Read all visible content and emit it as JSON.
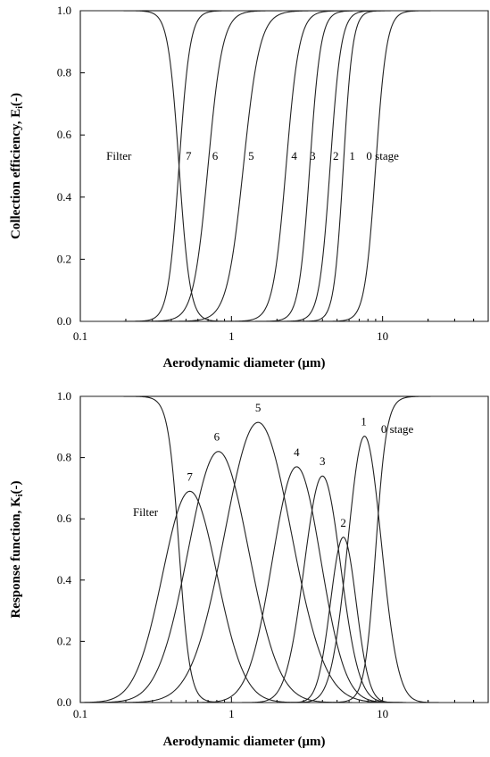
{
  "chart_data": [
    {
      "type": "line",
      "xlabel": "Aerodynamic diameter (μm)",
      "ylabel": "Collection efficiency, E",
      "ylabel_sub": "i",
      "ylabel_suffix": "(-)",
      "xscale": "log",
      "xlim": [
        0.1,
        50
      ],
      "ylim": [
        0,
        1.0
      ],
      "grid": false,
      "xticks": [
        "0.1",
        "1",
        "10"
      ],
      "yticks": [
        "0.0",
        "0.2",
        "0.4",
        "0.6",
        "0.8",
        "1.0"
      ],
      "series": [
        {
          "label": "Filter",
          "d50": 0.45,
          "slope": 12,
          "decreasing": true,
          "label_x": 0.18,
          "label_y": 0.52
        },
        {
          "label": "7",
          "d50": 0.45,
          "slope": 12,
          "label_x": 0.52,
          "label_y": 0.52
        },
        {
          "label": "6",
          "d50": 0.7,
          "slope": 9,
          "label_x": 0.78,
          "label_y": 0.52
        },
        {
          "label": "5",
          "d50": 1.2,
          "slope": 8,
          "label_x": 1.35,
          "label_y": 0.52
        },
        {
          "label": "4",
          "d50": 2.3,
          "slope": 10,
          "label_x": 2.6,
          "label_y": 0.52
        },
        {
          "label": "3",
          "d50": 3.3,
          "slope": 12,
          "label_x": 3.45,
          "label_y": 0.52
        },
        {
          "label": "2",
          "d50": 4.5,
          "slope": 12,
          "label_x": 4.9,
          "label_y": 0.52
        },
        {
          "label": "1",
          "d50": 5.5,
          "slope": 14,
          "label_x": 6.3,
          "label_y": 0.52
        },
        {
          "label": "0 stage",
          "d50": 9.0,
          "slope": 12,
          "label_x": 10.0,
          "label_y": 0.52
        }
      ]
    },
    {
      "type": "line",
      "xlabel": "Aerodynamic diameter (μm)",
      "ylabel": "Response function, K",
      "ylabel_sub": "i",
      "ylabel_suffix": "(-)",
      "xscale": "log",
      "xlim": [
        0.1,
        50
      ],
      "ylim": [
        0,
        1.0
      ],
      "grid": false,
      "xticks": [
        "0.1",
        "1",
        "10"
      ],
      "yticks": [
        "0.0",
        "0.2",
        "0.4",
        "0.6",
        "0.8",
        "1.0"
      ],
      "series": [
        {
          "label": "Filter",
          "shape": "falling",
          "d50": 0.45,
          "slope": 12,
          "label_x": 0.27,
          "label_y": 0.61
        },
        {
          "label": "7",
          "peak_x": 0.53,
          "peak_y": 0.69,
          "width": 0.18,
          "label_x": 0.53,
          "label_y": 0.725
        },
        {
          "label": "6",
          "peak_x": 0.82,
          "peak_y": 0.82,
          "width": 0.2,
          "label_x": 0.8,
          "label_y": 0.855
        },
        {
          "label": "5",
          "peak_x": 1.5,
          "peak_y": 0.915,
          "width": 0.22,
          "label_x": 1.5,
          "label_y": 0.95
        },
        {
          "label": "4",
          "peak_x": 2.7,
          "peak_y": 0.77,
          "width": 0.16,
          "label_x": 2.7,
          "label_y": 0.805
        },
        {
          "label": "3",
          "peak_x": 4.0,
          "peak_y": 0.74,
          "width": 0.12,
          "label_x": 4.0,
          "label_y": 0.775
        },
        {
          "label": "2",
          "peak_x": 5.5,
          "peak_y": 0.54,
          "width": 0.085,
          "label_x": 5.5,
          "label_y": 0.575
        },
        {
          "label": "1",
          "peak_x": 7.6,
          "peak_y": 0.87,
          "width": 0.11,
          "label_x": 7.5,
          "label_y": 0.905
        },
        {
          "label": "0 stage",
          "shape": "rising",
          "d50": 9.0,
          "slope": 12,
          "label_x": 12.5,
          "label_y": 0.88
        }
      ]
    }
  ]
}
